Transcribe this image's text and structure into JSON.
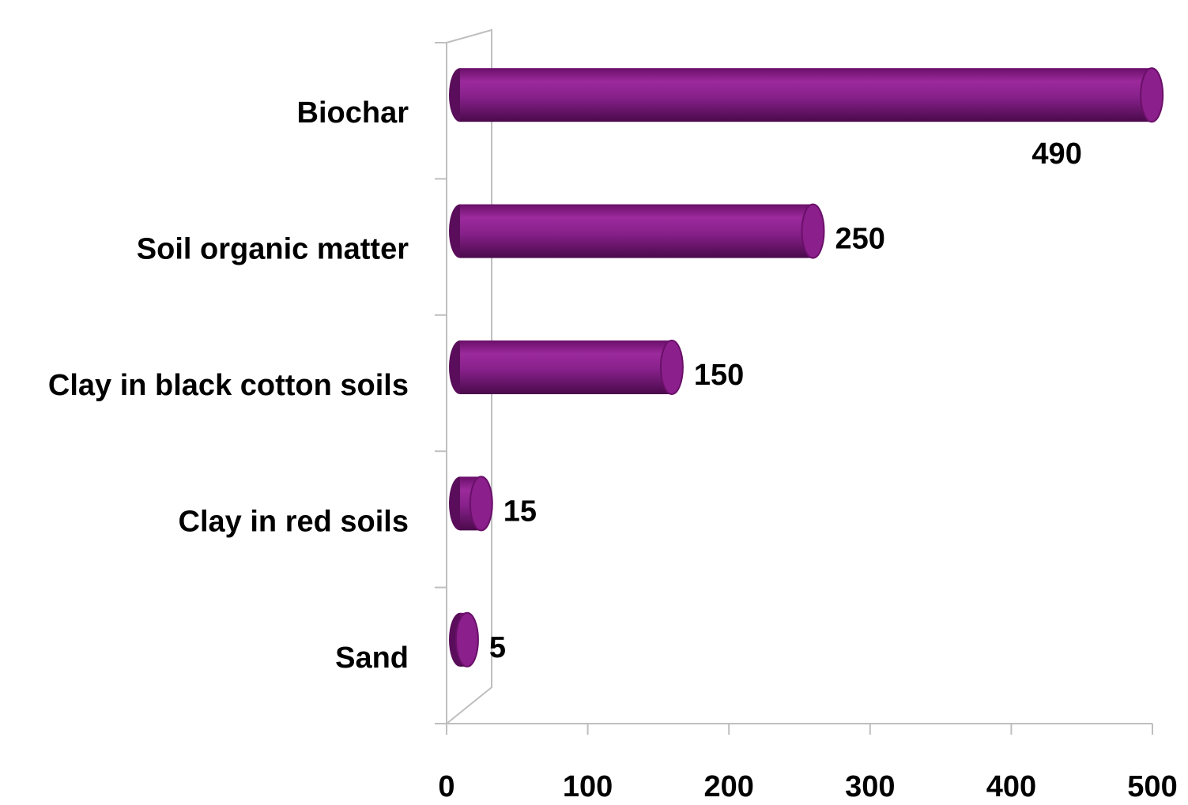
{
  "chart_data": {
    "type": "bar",
    "orientation": "horizontal",
    "categories": [
      "Biochar",
      "Soil organic matter",
      "Clay in black cotton soils",
      "Clay in red soils",
      "Sand"
    ],
    "values": [
      490,
      250,
      150,
      15,
      5
    ],
    "color": "#8b1f8b",
    "xlim": [
      0,
      500
    ],
    "xticks": [
      0,
      100,
      200,
      300,
      400,
      500
    ],
    "grid": false
  }
}
